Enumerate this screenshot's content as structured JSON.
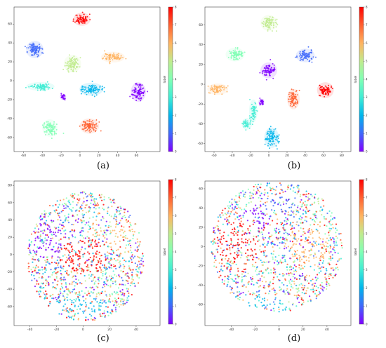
{
  "figure": {
    "captions": [
      "(a)",
      "(b)",
      "(c)",
      "(d)"
    ]
  },
  "colormap": [
    "#8000ff",
    "#4068fa",
    "#00b5eb",
    "#40ecd4",
    "#80ffb4",
    "#c0eb8d",
    "#ffb360",
    "#ff6030",
    "#ff0000"
  ],
  "chart_data": [
    {
      "type": "scatter",
      "caption": "(a)",
      "xlim": [
        -70,
        85
      ],
      "ylim": [
        -75,
        78
      ],
      "xticks": [
        -60,
        -40,
        -20,
        0,
        20,
        40,
        60
      ],
      "yticks": [
        -60,
        -40,
        -20,
        0,
        20,
        40,
        60
      ],
      "colorbar": {
        "label": "label",
        "min": 0,
        "max": 8,
        "ticks": [
          0,
          1,
          2,
          3,
          4,
          5,
          6,
          7,
          8
        ]
      },
      "clusters": [
        {
          "label": 8,
          "x": 2,
          "y": 65,
          "rx": 8,
          "ry": 6
        },
        {
          "label": 1,
          "x": -48,
          "y": 33,
          "rx": 8,
          "ry": 8
        },
        {
          "label": 5,
          "x": -8,
          "y": 18,
          "rx": 8,
          "ry": 8
        },
        {
          "label": 6,
          "x": 35,
          "y": 25,
          "rx": 11,
          "ry": 5
        },
        {
          "label": 3,
          "x": -42,
          "y": -6,
          "rx": 13,
          "ry": 4
        },
        {
          "label": 2,
          "x": 12,
          "y": -9,
          "rx": 11,
          "ry": 6
        },
        {
          "label": 0,
          "x": 62,
          "y": -12,
          "rx": 7,
          "ry": 9
        },
        {
          "label": 4,
          "x": -32,
          "y": -50,
          "rx": 7,
          "ry": 8
        },
        {
          "label": 7,
          "x": 10,
          "y": -48,
          "rx": 9,
          "ry": 7
        },
        {
          "label": 0,
          "x": -18,
          "y": -17,
          "rx": 3,
          "ry": 3
        }
      ]
    },
    {
      "type": "scatter",
      "caption": "(b)",
      "xlim": [
        -70,
        90
      ],
      "ylim": [
        -68,
        78
      ],
      "xticks": [
        -60,
        -40,
        -20,
        0,
        20,
        40,
        60,
        80
      ],
      "yticks": [
        -60,
        -40,
        -20,
        0,
        20,
        40,
        60
      ],
      "colorbar": {
        "label": "label",
        "min": 0,
        "max": 8,
        "ticks": [
          0,
          1,
          2,
          3,
          4,
          5,
          6,
          7,
          8
        ]
      },
      "clusters": [
        {
          "label": 5,
          "x": 0,
          "y": 62,
          "rx": 8,
          "ry": 7
        },
        {
          "label": 4,
          "x": -37,
          "y": 30,
          "rx": 9,
          "ry": 6
        },
        {
          "label": 1,
          "x": 40,
          "y": 29,
          "rx": 9,
          "ry": 6
        },
        {
          "label": 0,
          "x": 0,
          "y": 14,
          "rx": 8,
          "ry": 7
        },
        {
          "label": 6,
          "x": -56,
          "y": -5,
          "rx": 10,
          "ry": 5
        },
        {
          "label": 8,
          "x": 62,
          "y": -6,
          "rx": 8,
          "ry": 7
        },
        {
          "label": 7,
          "x": 27,
          "y": -15,
          "rx": 6,
          "ry": 9
        },
        {
          "label": 3,
          "x": -17,
          "y": -27,
          "rx": 4,
          "ry": 10
        },
        {
          "label": 3,
          "x": -24,
          "y": -40,
          "rx": 5,
          "ry": 5
        },
        {
          "label": 2,
          "x": 3,
          "y": -54,
          "rx": 7,
          "ry": 9
        },
        {
          "label": 0,
          "x": -8,
          "y": -18,
          "rx": 3,
          "ry": 3
        }
      ]
    },
    {
      "type": "scatter",
      "caption": "(c)",
      "xlim": [
        -52,
        58
      ],
      "ylim": [
        -82,
        85
      ],
      "xticks": [
        -40,
        -20,
        0,
        20,
        40
      ],
      "yticks": [
        -60,
        -40,
        -20,
        0,
        20,
        40,
        60,
        80
      ],
      "colorbar": {
        "label": "label",
        "min": 0,
        "max": 8,
        "ticks": [
          0,
          1,
          2,
          3,
          4,
          5,
          6,
          7,
          8
        ]
      },
      "cloud": {
        "cx": 2,
        "cy": -2,
        "rx": 44,
        "ry": 75
      },
      "tints": [
        {
          "label": 8,
          "x": 0,
          "y": -2,
          "rx": 18,
          "ry": 22
        },
        {
          "label": 2,
          "x": -5,
          "y": -60,
          "rx": 22,
          "ry": 14
        },
        {
          "label": 0,
          "x": -30,
          "y": 20,
          "rx": 18,
          "ry": 25
        },
        {
          "label": 6,
          "x": 30,
          "y": 20,
          "rx": 12,
          "ry": 22
        },
        {
          "label": 4,
          "x": 25,
          "y": 72,
          "rx": 8,
          "ry": 8
        },
        {
          "label": 3,
          "x": -40,
          "y": 10,
          "rx": 8,
          "ry": 10
        }
      ]
    },
    {
      "type": "scatter",
      "caption": "(d)",
      "xlim": [
        -62,
        60
      ],
      "ylim": [
        -82,
        68
      ],
      "xticks": [
        -40,
        -20,
        0,
        20,
        40
      ],
      "yticks": [
        -60,
        -40,
        -20,
        0,
        20,
        40,
        60
      ],
      "colorbar": {
        "label": "label",
        "min": 0,
        "max": 8,
        "ticks": [
          0,
          1,
          2,
          3,
          4,
          5,
          6,
          7,
          8
        ]
      },
      "cloud": {
        "cx": -2,
        "cy": 0,
        "rx": 55,
        "ry": 68
      },
      "tints": [
        {
          "label": 8,
          "x": -35,
          "y": 0,
          "rx": 18,
          "ry": 28
        },
        {
          "label": 2,
          "x": -12,
          "y": -62,
          "rx": 20,
          "ry": 12
        },
        {
          "label": 6,
          "x": 25,
          "y": 0,
          "rx": 18,
          "ry": 25
        },
        {
          "label": 0,
          "x": -20,
          "y": 30,
          "rx": 14,
          "ry": 14
        },
        {
          "label": 4,
          "x": 45,
          "y": 52,
          "rx": 8,
          "ry": 7
        },
        {
          "label": 1,
          "x": 0,
          "y": 45,
          "rx": 15,
          "ry": 10
        }
      ]
    }
  ]
}
